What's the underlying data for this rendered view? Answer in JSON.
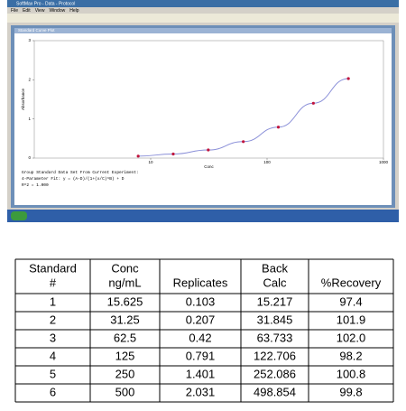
{
  "window": {
    "title": "SoftMax Pro - Data - Protocol",
    "menu": [
      "File",
      "Edit",
      "View",
      "Window",
      "Help"
    ],
    "document_title": "Standard Curve Plot"
  },
  "chart_data": {
    "type": "scatter",
    "x_label": "Conc",
    "y_label": "Absorbance",
    "x": [
      7.8125,
      15.625,
      31.25,
      62.5,
      125,
      250,
      500
    ],
    "values": [
      0.05,
      0.103,
      0.207,
      0.42,
      0.791,
      1.401,
      2.031
    ],
    "log_x": true,
    "xlim": [
      1,
      1000
    ],
    "xticks": [
      10,
      100,
      1000
    ],
    "ylim": [
      0,
      3
    ],
    "yticks": [
      0,
      1,
      2,
      3
    ],
    "point_color": "#c0143c",
    "line_color": "#8a8fd8",
    "notes": [
      "Group Standard Data Set From Current Experiment:",
      "4-Parameter Fit: y = (A-D)/(1+(x/C)^B) + D",
      "R^2 = 1.000"
    ]
  },
  "table": {
    "header": [
      [
        "Standard",
        "#"
      ],
      [
        "Conc",
        "ng/mL"
      ],
      [
        "Replicates"
      ],
      [
        "Back",
        "Calc"
      ],
      [
        "%Recovery"
      ]
    ],
    "rows": [
      [
        "1",
        "15.625",
        "0.103",
        "15.217",
        "97.4"
      ],
      [
        "2",
        "31.25",
        "0.207",
        "31.845",
        "101.9"
      ],
      [
        "3",
        "62.5",
        "0.42",
        "63.733",
        "102.0"
      ],
      [
        "4",
        "125",
        "0.791",
        "122.706",
        "98.2"
      ],
      [
        "5",
        "250",
        "1.401",
        "252.086",
        "100.8"
      ],
      [
        "6",
        "500",
        "2.031",
        "498.854",
        "99.8"
      ]
    ]
  }
}
